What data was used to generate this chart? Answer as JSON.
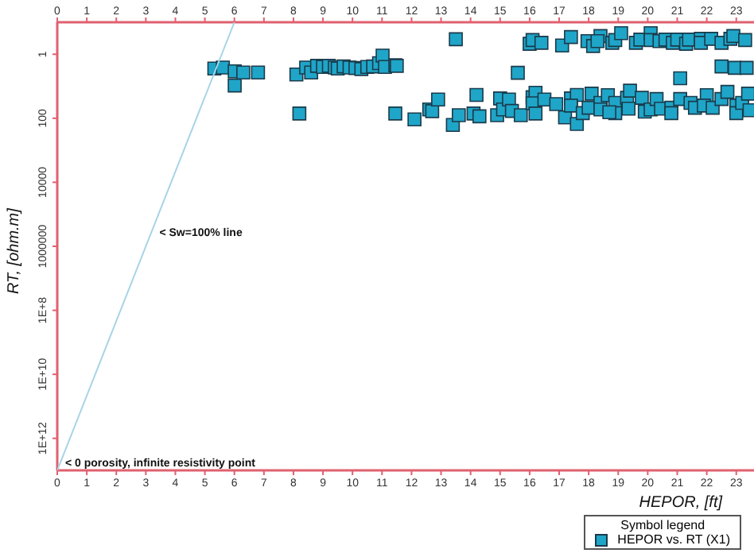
{
  "chart_data": {
    "type": "scatter",
    "xlabel": "HEPOR, [ft]",
    "ylabel": "RT, [ohm.m]",
    "legend_title": "Symbol legend",
    "legend": "bottom right",
    "marker": "square",
    "log": "y",
    "xlim": [
      0,
      23.6
    ],
    "xticks": [
      0,
      1,
      2,
      3,
      4,
      5,
      6,
      7,
      8,
      9,
      10,
      11,
      12,
      13,
      14,
      15,
      16,
      17,
      18,
      19,
      20,
      21,
      22,
      23
    ],
    "x2lim": [
      0,
      23.6
    ],
    "x2ticks": [
      0,
      1,
      2,
      3,
      4,
      5,
      6,
      7,
      8,
      9,
      10,
      11,
      12,
      13,
      14,
      15,
      16,
      17,
      18,
      19,
      20,
      21,
      22,
      23
    ],
    "ylim": [
      10000000000000.0,
      0.1
    ],
    "yticks": [
      1,
      100,
      10000,
      1000000,
      {
        "value": 100000000.0,
        "label": "1E+8"
      },
      {
        "value": 10000000000.0,
        "label": "1E+10"
      },
      {
        "value": 1000000000000.0,
        "label": "1E+12"
      }
    ],
    "annotations": [
      {
        "text": "< Sw=100% line",
        "x": 3.19,
        "y": 360000
      },
      {
        "text": "< 0 porosity, infinite resistivity point",
        "x": 0,
        "y": 10000000000000.0
      }
    ],
    "series": [
      {
        "name": "HEPOR vs. RT (X1)",
        "color": "#1fa5c8",
        "x": [
          5.32,
          5.61,
          6.01,
          6.01,
          6.3,
          6.8,
          8.1,
          8.2,
          8.43,
          8.6,
          8.8,
          9.0,
          9.2,
          9.4,
          9.5,
          9.7,
          9.9,
          10.1,
          10.3,
          10.5,
          10.7,
          10.9,
          11.02,
          11.1,
          11.45,
          11.45,
          11.5,
          12.1,
          12.6,
          12.7,
          12.9,
          13.4,
          13.5,
          13.6,
          14.1,
          14.2,
          14.3,
          14.9,
          15.0,
          15.1,
          15.3,
          15.4,
          15.6,
          15.7,
          16.0,
          16.1,
          16.4,
          16.1,
          16.2,
          16.1,
          16.2,
          16.5,
          16.9,
          17.1,
          17.4,
          17.2,
          17.4,
          17.6,
          17.6,
          17.4,
          17.8,
          17.96,
          18.15,
          18.4,
          18.3,
          18.0,
          18.1,
          18.4,
          18.4,
          18.65,
          18.8,
          18.9,
          19.1,
          18.9,
          18.9,
          18.7,
          19.3,
          19.4,
          19.35,
          19.6,
          19.75,
          19.8,
          19.9,
          20.1,
          20.1,
          20.1,
          20.3,
          20.4,
          20.45,
          20.6,
          20.8,
          20.8,
          20.85,
          21.0,
          21.1,
          21.1,
          21.3,
          21.4,
          21.45,
          21.6,
          21.8,
          21.8,
          22.0,
          21.9,
          22.15,
          22.2,
          22.5,
          22.5,
          22.5,
          22.7,
          22.8,
          22.9,
          22.95,
          23.0,
          23.0,
          23.2,
          23.3,
          23.35,
          23.4,
          23.45
        ],
        "values": [
          2.8,
          2.6,
          3.4,
          9.5,
          3.7,
          3.7,
          4.3,
          71,
          2.6,
          3.7,
          2.3,
          2.5,
          2.3,
          2.6,
          2.8,
          2.4,
          2.6,
          2.7,
          2.9,
          2.5,
          2.4,
          1.9,
          1.1,
          2.5,
          2.2,
          71,
          2.3,
          108,
          53,
          60,
          26,
          162,
          0.34,
          80,
          71,
          18.6,
          87,
          80,
          24,
          53,
          26,
          59,
          3.8,
          80,
          0.47,
          0.36,
          0.44,
          22,
          16,
          34,
          71,
          26,
          36,
          0.53,
          0.29,
          94,
          24,
          18.6,
          150,
          40,
          69,
          0.39,
          0.55,
          0.27,
          0.39,
          47,
          17,
          33,
          53,
          19,
          0.44,
          0.36,
          0.22,
          33,
          69,
          65,
          23,
          13.7,
          50,
          0.44,
          0.35,
          23,
          62,
          53,
          0.22,
          0.36,
          25,
          0.39,
          50,
          0.35,
          47,
          69,
          0.44,
          0.35,
          5.6,
          25,
          0.47,
          0.35,
          33,
          47,
          0.33,
          0.44,
          19,
          40,
          0.33,
          47,
          0.44,
          2.4,
          25,
          15,
          0.33,
          0.27,
          2.65,
          40,
          69,
          33,
          0.36,
          2.65,
          17,
          56
        ]
      },
      {
        "type": "line",
        "marker": "none",
        "color": "#a8d4e6",
        "x": [
          0,
          6.0
        ],
        "values": [
          10000000000000.0,
          0.1
        ]
      }
    ]
  }
}
